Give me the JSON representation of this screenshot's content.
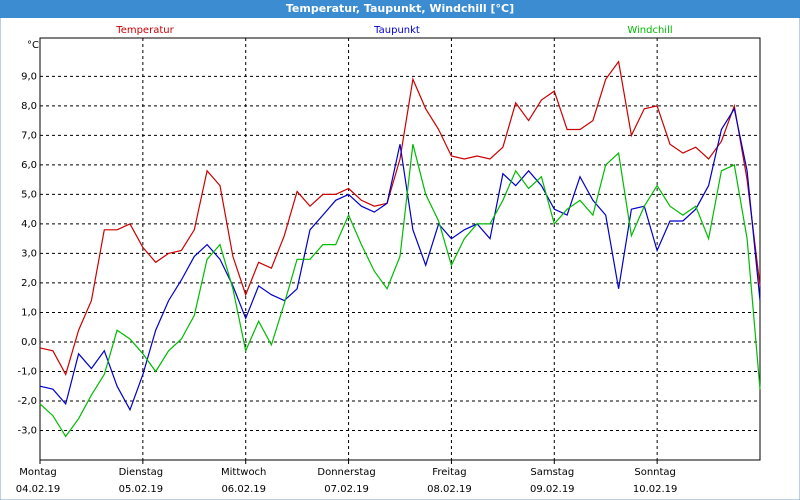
{
  "chart_data": {
    "type": "line",
    "title": "Temperatur, Taupunkt, Windchill [°C]",
    "y_label": "°C",
    "x": [
      0,
      0.125,
      0.25,
      0.375,
      0.5,
      0.625,
      0.75,
      0.875,
      1,
      1.125,
      1.25,
      1.375,
      1.5,
      1.625,
      1.75,
      1.875,
      2,
      2.125,
      2.25,
      2.375,
      2.5,
      2.625,
      2.75,
      2.875,
      3,
      3.125,
      3.25,
      3.375,
      3.5,
      3.625,
      3.75,
      3.875,
      4,
      4.125,
      4.25,
      4.375,
      4.5,
      4.625,
      4.75,
      4.875,
      5,
      5.125,
      5.25,
      5.375,
      5.5,
      5.625,
      5.75,
      5.875,
      6,
      6.125,
      6.25,
      6.375,
      6.5,
      6.625,
      6.75,
      6.875,
      7
    ],
    "series": [
      {
        "name": "Temperatur",
        "color": "#cc0000",
        "values": [
          -0.2,
          -0.3,
          -1.1,
          0.4,
          1.4,
          3.8,
          3.8,
          4.0,
          3.2,
          2.7,
          3.0,
          3.1,
          3.8,
          5.8,
          5.3,
          2.9,
          1.6,
          2.7,
          2.5,
          3.6,
          5.1,
          4.6,
          5.0,
          5.0,
          5.2,
          4.8,
          4.6,
          4.7,
          6.2,
          8.9,
          7.9,
          7.2,
          6.3,
          6.2,
          6.3,
          6.2,
          6.6,
          8.1,
          7.5,
          8.2,
          8.5,
          7.2,
          7.2,
          7.5,
          8.9,
          9.5,
          7.0,
          7.9,
          8.0,
          6.7,
          6.4,
          6.6,
          6.2,
          6.8,
          8.0,
          5.5,
          1.9
        ]
      },
      {
        "name": "Taupunkt",
        "color": "#0000cc",
        "values": [
          -1.5,
          -1.6,
          -2.1,
          -0.4,
          -0.9,
          -0.3,
          -1.5,
          -2.3,
          -1.1,
          0.4,
          1.4,
          2.1,
          2.9,
          3.3,
          2.8,
          1.9,
          0.8,
          1.9,
          1.6,
          1.4,
          1.8,
          3.8,
          4.3,
          4.8,
          5.0,
          4.6,
          4.4,
          4.7,
          6.7,
          3.8,
          2.6,
          4.0,
          3.5,
          3.8,
          4.0,
          3.5,
          5.7,
          5.3,
          5.8,
          5.3,
          4.5,
          4.3,
          5.6,
          4.8,
          4.3,
          1.8,
          4.5,
          4.6,
          3.1,
          4.1,
          4.1,
          4.5,
          5.3,
          7.2,
          7.9,
          5.8,
          1.4
        ]
      },
      {
        "name": "Windchill",
        "color": "#00bb00",
        "values": [
          -2.1,
          -2.5,
          -3.2,
          -2.6,
          -1.8,
          -1.1,
          0.4,
          0.1,
          -0.4,
          -1.0,
          -0.3,
          0.1,
          0.9,
          2.8,
          3.3,
          1.8,
          -0.3,
          0.7,
          -0.1,
          1.3,
          2.8,
          2.8,
          3.3,
          3.3,
          4.3,
          3.3,
          2.4,
          1.8,
          2.9,
          6.7,
          5.0,
          4.1,
          2.6,
          3.5,
          4.0,
          4.0,
          4.8,
          5.8,
          5.2,
          5.6,
          4.0,
          4.5,
          4.8,
          4.3,
          6.0,
          6.4,
          3.6,
          4.6,
          5.3,
          4.6,
          4.3,
          4.6,
          3.5,
          5.8,
          6.0,
          3.5,
          -1.6
        ]
      }
    ],
    "xlim": [
      0,
      7
    ],
    "xticks": [
      {
        "value": 0,
        "label": "Montag",
        "date": "04.02.19"
      },
      {
        "value": 1,
        "label": "Dienstag",
        "date": "05.02.19"
      },
      {
        "value": 2,
        "label": "Mittwoch",
        "date": "06.02.19"
      },
      {
        "value": 3,
        "label": "Donnerstag",
        "date": "07.02.19"
      },
      {
        "value": 4,
        "label": "Freitag",
        "date": "08.02.19"
      },
      {
        "value": 5,
        "label": "Samstag",
        "date": "09.02.19"
      },
      {
        "value": 6,
        "label": "Sonntag",
        "date": "10.02.19"
      }
    ],
    "ylim": [
      -4,
      10.3
    ],
    "yticks": [
      {
        "value": -3,
        "label": "-3,0"
      },
      {
        "value": -2,
        "label": "-2,0"
      },
      {
        "value": -1,
        "label": "-1,0"
      },
      {
        "value": 0,
        "label": "0,0"
      },
      {
        "value": 1,
        "label": "1,0"
      },
      {
        "value": 2,
        "label": "2,0"
      },
      {
        "value": 3,
        "label": "3,0"
      },
      {
        "value": 4,
        "label": "4,0"
      },
      {
        "value": 5,
        "label": "5,0"
      },
      {
        "value": 6,
        "label": "6,0"
      },
      {
        "value": 7,
        "label": "7,0"
      },
      {
        "value": 8,
        "label": "8,0"
      },
      {
        "value": 9,
        "label": "9,0"
      }
    ],
    "grid": true
  }
}
